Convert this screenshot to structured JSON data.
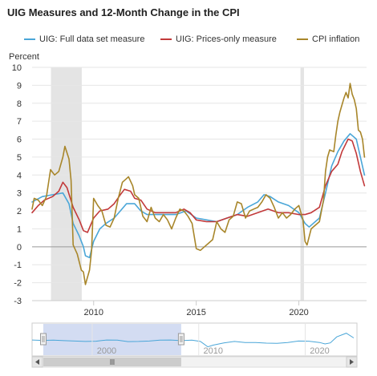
{
  "chart_data": {
    "type": "line",
    "title": "UIG Measures and 12-Month Change in the CPI",
    "ylabel": "Percent",
    "xlabel": "",
    "ylim": [
      -3,
      10
    ],
    "y_ticks": [
      "-3",
      "-2",
      "-1",
      "0",
      "1",
      "2",
      "3",
      "4",
      "5",
      "6",
      "7",
      "8",
      "9",
      "10"
    ],
    "xlim": [
      2007.0,
      2023.3
    ],
    "x_ticks": [
      {
        "value": 2010,
        "label": "2010"
      },
      {
        "value": 2015,
        "label": "2015"
      },
      {
        "value": 2020,
        "label": "2020"
      }
    ],
    "grid": true,
    "legend_position": "top",
    "recessions": [
      [
        2007.92,
        2009.42
      ],
      [
        2020.08,
        2020.25
      ]
    ],
    "colors": {
      "full": "#4aa6d8",
      "prices": "#c2393a",
      "cpi": "#a8862a",
      "recession": "#e4e4e4",
      "grid": "#e6e6e6",
      "zero_line": "#999999"
    },
    "series": [
      {
        "name": "UIG: Full data set measure",
        "key": "full",
        "points": [
          [
            2007.0,
            2.5
          ],
          [
            2007.5,
            2.8
          ],
          [
            2008.0,
            2.9
          ],
          [
            2008.5,
            3.0
          ],
          [
            2008.8,
            2.4
          ],
          [
            2009.0,
            1.3
          ],
          [
            2009.3,
            0.6
          ],
          [
            2009.5,
            0.0
          ],
          [
            2009.6,
            -0.5
          ],
          [
            2009.8,
            -0.6
          ],
          [
            2010.0,
            0.3
          ],
          [
            2010.3,
            1.0
          ],
          [
            2010.6,
            1.3
          ],
          [
            2011.0,
            1.6
          ],
          [
            2011.3,
            2.0
          ],
          [
            2011.6,
            2.4
          ],
          [
            2012.0,
            2.4
          ],
          [
            2012.3,
            2.0
          ],
          [
            2012.6,
            1.8
          ],
          [
            2013.0,
            1.8
          ],
          [
            2013.5,
            1.8
          ],
          [
            2014.0,
            1.8
          ],
          [
            2014.5,
            2.0
          ],
          [
            2015.0,
            1.6
          ],
          [
            2015.5,
            1.5
          ],
          [
            2016.0,
            1.4
          ],
          [
            2016.5,
            1.6
          ],
          [
            2017.0,
            1.8
          ],
          [
            2017.5,
            2.2
          ],
          [
            2018.0,
            2.5
          ],
          [
            2018.3,
            2.9
          ],
          [
            2018.6,
            2.8
          ],
          [
            2019.0,
            2.5
          ],
          [
            2019.5,
            2.3
          ],
          [
            2020.0,
            1.9
          ],
          [
            2020.3,
            1.3
          ],
          [
            2020.5,
            1.1
          ],
          [
            2020.7,
            1.3
          ],
          [
            2021.0,
            1.6
          ],
          [
            2021.3,
            3.0
          ],
          [
            2021.6,
            4.5
          ],
          [
            2021.9,
            5.3
          ],
          [
            2022.2,
            5.9
          ],
          [
            2022.5,
            6.3
          ],
          [
            2022.8,
            6.0
          ],
          [
            2023.0,
            5.0
          ],
          [
            2023.2,
            4.0
          ]
        ]
      },
      {
        "name": "UIG: Prices-only measure",
        "key": "prices",
        "points": [
          [
            2007.0,
            1.9
          ],
          [
            2007.3,
            2.3
          ],
          [
            2007.6,
            2.6
          ],
          [
            2008.0,
            2.8
          ],
          [
            2008.3,
            3.1
          ],
          [
            2008.5,
            3.6
          ],
          [
            2008.7,
            3.3
          ],
          [
            2009.0,
            2.2
          ],
          [
            2009.3,
            1.5
          ],
          [
            2009.5,
            0.9
          ],
          [
            2009.7,
            0.8
          ],
          [
            2010.0,
            1.6
          ],
          [
            2010.3,
            2.0
          ],
          [
            2010.7,
            2.1
          ],
          [
            2011.0,
            2.4
          ],
          [
            2011.3,
            2.9
          ],
          [
            2011.5,
            3.2
          ],
          [
            2011.8,
            3.1
          ],
          [
            2012.0,
            2.7
          ],
          [
            2012.3,
            2.6
          ],
          [
            2012.6,
            2.1
          ],
          [
            2013.0,
            1.9
          ],
          [
            2013.5,
            1.9
          ],
          [
            2014.0,
            1.9
          ],
          [
            2014.4,
            2.1
          ],
          [
            2014.7,
            1.9
          ],
          [
            2015.0,
            1.5
          ],
          [
            2015.5,
            1.4
          ],
          [
            2016.0,
            1.4
          ],
          [
            2016.5,
            1.6
          ],
          [
            2017.0,
            1.8
          ],
          [
            2017.5,
            1.7
          ],
          [
            2018.0,
            1.9
          ],
          [
            2018.5,
            2.1
          ],
          [
            2019.0,
            1.9
          ],
          [
            2019.5,
            1.9
          ],
          [
            2020.0,
            1.8
          ],
          [
            2020.3,
            1.8
          ],
          [
            2020.6,
            1.9
          ],
          [
            2021.0,
            2.2
          ],
          [
            2021.3,
            3.4
          ],
          [
            2021.6,
            4.2
          ],
          [
            2021.9,
            4.6
          ],
          [
            2022.1,
            5.3
          ],
          [
            2022.4,
            6.0
          ],
          [
            2022.6,
            5.9
          ],
          [
            2022.8,
            5.2
          ],
          [
            2023.0,
            4.2
          ],
          [
            2023.2,
            3.4
          ]
        ]
      },
      {
        "name": "CPI inflation",
        "key": "cpi",
        "points": [
          [
            2007.0,
            2.1
          ],
          [
            2007.1,
            2.7
          ],
          [
            2007.3,
            2.6
          ],
          [
            2007.5,
            2.3
          ],
          [
            2007.7,
            2.8
          ],
          [
            2007.9,
            4.3
          ],
          [
            2008.1,
            4.0
          ],
          [
            2008.3,
            4.2
          ],
          [
            2008.5,
            5.0
          ],
          [
            2008.6,
            5.6
          ],
          [
            2008.8,
            4.9
          ],
          [
            2008.9,
            3.7
          ],
          [
            2009.0,
            0.1
          ],
          [
            2009.2,
            -0.4
          ],
          [
            2009.4,
            -1.3
          ],
          [
            2009.5,
            -1.4
          ],
          [
            2009.6,
            -2.1
          ],
          [
            2009.8,
            -1.3
          ],
          [
            2009.9,
            -0.2
          ],
          [
            2010.0,
            2.7
          ],
          [
            2010.2,
            2.3
          ],
          [
            2010.4,
            2.0
          ],
          [
            2010.6,
            1.2
          ],
          [
            2010.8,
            1.1
          ],
          [
            2011.0,
            1.6
          ],
          [
            2011.2,
            2.7
          ],
          [
            2011.4,
            3.6
          ],
          [
            2011.6,
            3.8
          ],
          [
            2011.7,
            3.9
          ],
          [
            2011.9,
            3.4
          ],
          [
            2012.0,
            2.9
          ],
          [
            2012.2,
            2.7
          ],
          [
            2012.4,
            1.7
          ],
          [
            2012.6,
            1.4
          ],
          [
            2012.8,
            2.2
          ],
          [
            2013.0,
            1.6
          ],
          [
            2013.2,
            1.4
          ],
          [
            2013.4,
            1.8
          ],
          [
            2013.6,
            1.5
          ],
          [
            2013.8,
            1.0
          ],
          [
            2014.0,
            1.6
          ],
          [
            2014.2,
            2.1
          ],
          [
            2014.4,
            2.0
          ],
          [
            2014.6,
            1.7
          ],
          [
            2014.8,
            1.3
          ],
          [
            2015.0,
            -0.1
          ],
          [
            2015.2,
            -0.2
          ],
          [
            2015.4,
            0.0
          ],
          [
            2015.6,
            0.2
          ],
          [
            2015.8,
            0.4
          ],
          [
            2016.0,
            1.4
          ],
          [
            2016.2,
            1.0
          ],
          [
            2016.4,
            0.8
          ],
          [
            2016.6,
            1.5
          ],
          [
            2016.8,
            1.7
          ],
          [
            2017.0,
            2.5
          ],
          [
            2017.2,
            2.4
          ],
          [
            2017.4,
            1.6
          ],
          [
            2017.6,
            2.0
          ],
          [
            2017.8,
            2.1
          ],
          [
            2018.0,
            2.2
          ],
          [
            2018.2,
            2.5
          ],
          [
            2018.4,
            2.9
          ],
          [
            2018.6,
            2.7
          ],
          [
            2018.8,
            2.2
          ],
          [
            2019.0,
            1.6
          ],
          [
            2019.2,
            1.9
          ],
          [
            2019.4,
            1.6
          ],
          [
            2019.6,
            1.8
          ],
          [
            2019.8,
            2.1
          ],
          [
            2020.0,
            2.3
          ],
          [
            2020.2,
            1.5
          ],
          [
            2020.3,
            0.3
          ],
          [
            2020.4,
            0.1
          ],
          [
            2020.6,
            1.0
          ],
          [
            2020.8,
            1.2
          ],
          [
            2021.0,
            1.4
          ],
          [
            2021.2,
            2.6
          ],
          [
            2021.3,
            4.2
          ],
          [
            2021.4,
            5.0
          ],
          [
            2021.5,
            5.4
          ],
          [
            2021.7,
            5.3
          ],
          [
            2021.8,
            6.2
          ],
          [
            2021.9,
            7.0
          ],
          [
            2022.0,
            7.5
          ],
          [
            2022.1,
            7.9
          ],
          [
            2022.2,
            8.3
          ],
          [
            2022.3,
            8.6
          ],
          [
            2022.4,
            8.3
          ],
          [
            2022.5,
            9.1
          ],
          [
            2022.6,
            8.5
          ],
          [
            2022.7,
            8.2
          ],
          [
            2022.8,
            7.7
          ],
          [
            2022.9,
            6.5
          ],
          [
            2023.0,
            6.4
          ],
          [
            2023.1,
            6.0
          ],
          [
            2023.2,
            5.0
          ]
        ]
      }
    ]
  },
  "navigator": {
    "labels": [
      {
        "value": 2000,
        "label": "2000"
      },
      {
        "value": 2010,
        "label": "2010"
      },
      {
        "value": 2020,
        "label": "2020"
      }
    ],
    "xlim": [
      1993.0,
      2023.5
    ],
    "selection": [
      1993.0,
      2007.0
    ],
    "points": [
      [
        1993.0,
        3.0
      ],
      [
        1994.0,
        2.8
      ],
      [
        1995.0,
        2.9
      ],
      [
        1996.0,
        2.7
      ],
      [
        1997.0,
        2.5
      ],
      [
        1998.0,
        2.3
      ],
      [
        1999.0,
        2.4
      ],
      [
        2000.0,
        3.0
      ],
      [
        2001.0,
        2.9
      ],
      [
        2002.0,
        2.2
      ],
      [
        2003.0,
        2.3
      ],
      [
        2004.0,
        2.5
      ],
      [
        2005.0,
        2.9
      ],
      [
        2006.0,
        3.0
      ],
      [
        2007.0,
        2.7
      ],
      [
        2008.0,
        2.9
      ],
      [
        2008.8,
        2.3
      ],
      [
        2009.5,
        -0.3
      ],
      [
        2010.0,
        0.5
      ],
      [
        2011.0,
        1.6
      ],
      [
        2012.0,
        2.3
      ],
      [
        2013.0,
        1.8
      ],
      [
        2014.0,
        1.8
      ],
      [
        2015.0,
        1.5
      ],
      [
        2016.0,
        1.4
      ],
      [
        2017.0,
        1.8
      ],
      [
        2018.0,
        2.5
      ],
      [
        2019.0,
        2.4
      ],
      [
        2020.0,
        1.8
      ],
      [
        2020.5,
        1.1
      ],
      [
        2021.0,
        1.6
      ],
      [
        2021.6,
        4.5
      ],
      [
        2022.5,
        6.3
      ],
      [
        2023.2,
        4.0
      ]
    ]
  }
}
